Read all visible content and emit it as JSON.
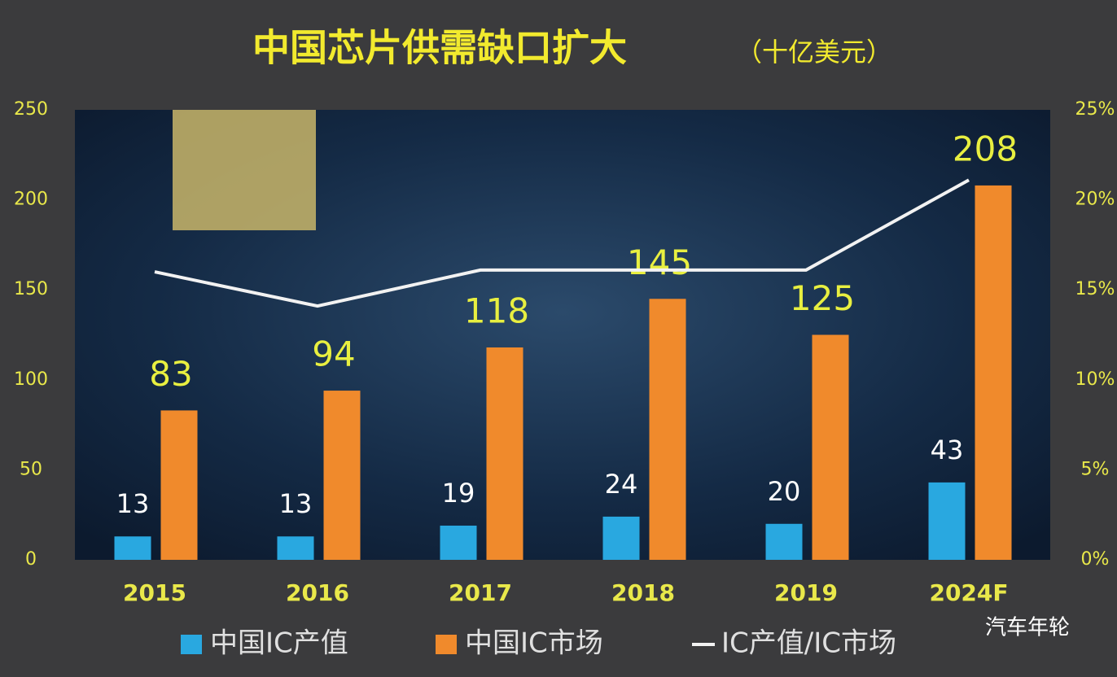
{
  "chart_data": {
    "type": "bar",
    "title": "中国芯片供需缺口扩大",
    "subtitle": "（十亿美元）",
    "categories": [
      "2015",
      "2016",
      "2017",
      "2018",
      "2019",
      "2024F"
    ],
    "series": [
      {
        "name": "中国IC产值",
        "color": "#29a8e0",
        "values": [
          13,
          13,
          19,
          24,
          20,
          43
        ]
      },
      {
        "name": "中国IC市场",
        "color": "#f08a2c",
        "values": [
          83,
          94,
          118,
          145,
          125,
          208
        ]
      },
      {
        "name": "IC产值/IC市场",
        "color": "#f2f2f2",
        "axis": "y2",
        "values": [
          16.0,
          14.1,
          16.1,
          16.1,
          16.1,
          21.1
        ]
      }
    ],
    "ylim": [
      0,
      250
    ],
    "yticks": [
      0,
      50,
      100,
      150,
      200,
      250
    ],
    "y2lim": [
      0,
      25
    ],
    "y2ticks": [
      {
        "value": 0,
        "label": "0%"
      },
      {
        "value": 5,
        "label": "5%"
      },
      {
        "value": 10,
        "label": "10%"
      },
      {
        "value": 15,
        "label": "15%"
      },
      {
        "value": 20,
        "label": "20%"
      },
      {
        "value": 25,
        "label": "25%"
      }
    ],
    "watermark": "汽车年轮"
  }
}
